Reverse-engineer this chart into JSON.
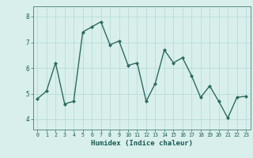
{
  "x": [
    0,
    1,
    2,
    3,
    4,
    5,
    6,
    7,
    8,
    9,
    10,
    11,
    12,
    13,
    14,
    15,
    16,
    17,
    18,
    19,
    20,
    21,
    22,
    23
  ],
  "y": [
    4.8,
    5.1,
    6.2,
    4.6,
    4.7,
    7.4,
    7.6,
    7.8,
    6.9,
    7.05,
    6.1,
    6.2,
    4.7,
    5.4,
    6.7,
    6.2,
    6.4,
    5.7,
    4.85,
    5.3,
    4.7,
    4.05,
    4.85,
    4.9
  ],
  "xlabel": "Humidex (Indice chaleur)",
  "ylim": [
    3.6,
    8.4
  ],
  "xlim": [
    -0.5,
    23.5
  ],
  "yticks": [
    4,
    5,
    6,
    7,
    8
  ],
  "xticks": [
    0,
    1,
    2,
    3,
    4,
    5,
    6,
    7,
    8,
    9,
    10,
    11,
    12,
    13,
    14,
    15,
    16,
    17,
    18,
    19,
    20,
    21,
    22,
    23
  ],
  "line_color": "#2d6b5e",
  "bg_color": "#d8efec",
  "grid_color": "#b8ddd9",
  "axis_color": "#3d7a6e",
  "tick_label_color": "#1a5a50",
  "spine_color": "#5a9080"
}
